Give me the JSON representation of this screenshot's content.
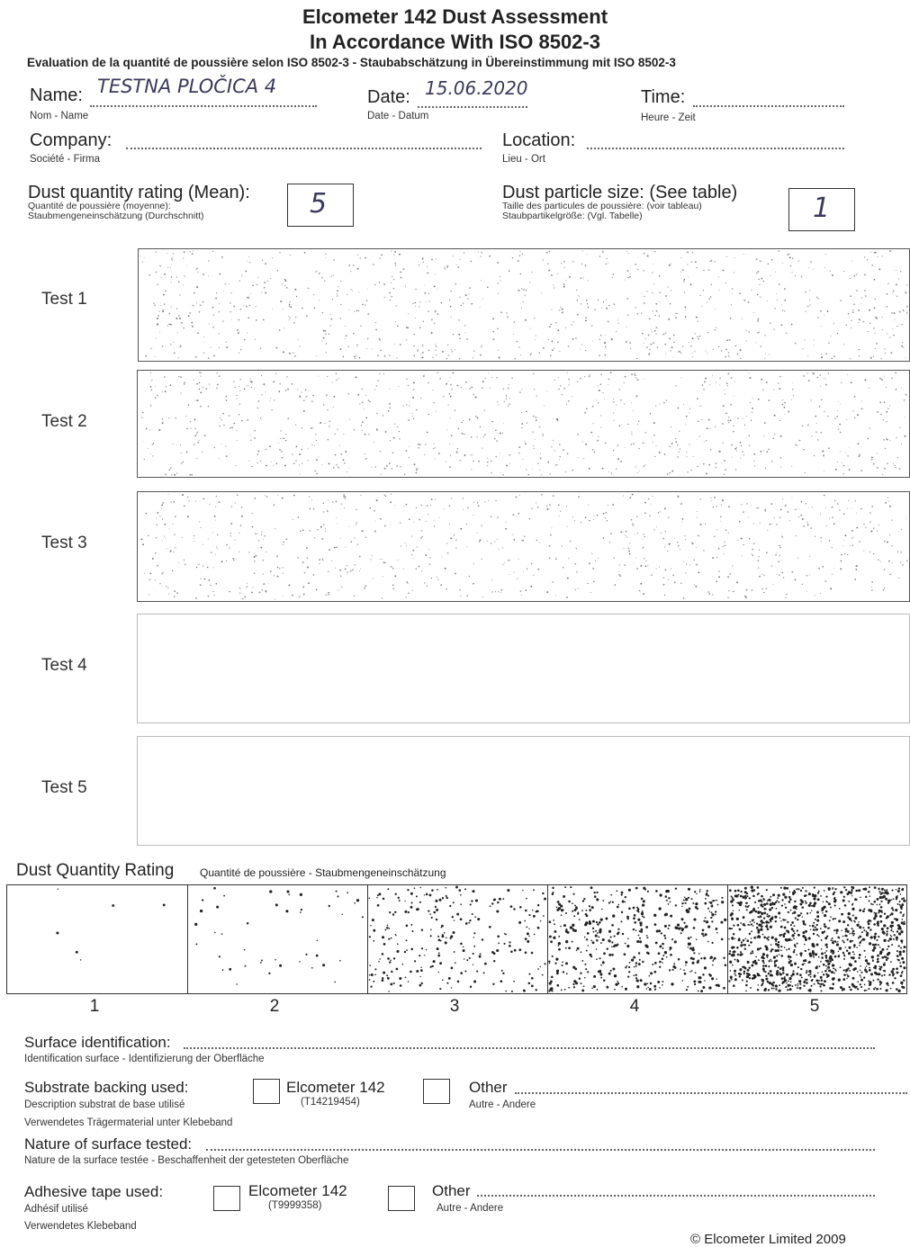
{
  "header": {
    "title_line1": "Elcometer 142 Dust Assessment",
    "title_line2": "In Accordance With ISO 8502-3",
    "subtitle": "Evaluation de la quantité de poussière selon  ISO 8502-3 - Staubabschätzung in Übereinstimmung mit ISO 8502-3"
  },
  "fields": {
    "name": {
      "label": "Name:",
      "translation": "Nom - Name",
      "value": "TESTNA PLOČICA  4"
    },
    "date": {
      "label": "Date:",
      "translation": "Date - Datum",
      "value": "15.06.2020"
    },
    "time": {
      "label": "Time:",
      "translation": "Heure - Zeit",
      "value": ""
    },
    "company": {
      "label": "Company:",
      "translation": "Société - Firma",
      "value": ""
    },
    "location": {
      "label": "Location:",
      "translation": "Lieu - Ort",
      "value": ""
    }
  },
  "ratings": {
    "quantity": {
      "label": "Dust quantity rating (Mean):",
      "translation1": "Quantité de poussière (moyenne):",
      "translation2": "Staubmengeneinschätzung (Durchschnitt)",
      "value": "5"
    },
    "size": {
      "label": "Dust particle size: (See table)",
      "translation1": "Taille des particules de poussière: (voir tableau)",
      "translation2": "Staubpartikelgröße: (Vgl. Tabelle)",
      "value": "1"
    }
  },
  "tests": [
    {
      "label": "Test 1",
      "filled": true
    },
    {
      "label": "Test 2",
      "filled": true
    },
    {
      "label": "Test 3",
      "filled": true
    },
    {
      "label": "Test 4",
      "filled": false
    },
    {
      "label": "Test 5",
      "filled": false
    }
  ],
  "scale": {
    "title": "Dust Quantity Rating",
    "subtitle": "Quantité de poussière - Staubmengeneinschätzung",
    "levels": [
      "1",
      "2",
      "3",
      "4",
      "5"
    ]
  },
  "footer": {
    "surface_id": {
      "label": "Surface identification:",
      "translation": "Identification surface - Identifizierung der Oberfläche"
    },
    "substrate": {
      "label": "Substrate backing used:",
      "translation1": "Description substrat de base utilisé",
      "translation2": "Verwendetes Trägermaterial unter Klebeband",
      "option1": "Elcometer 142",
      "option1_code": "(T14219454)",
      "option2": "Other",
      "option2_translation": "Autre - Andere"
    },
    "nature": {
      "label": "Nature of surface tested:",
      "translation": "Nature de la surface testée - Beschaffenheit der getesteten Oberfläche"
    },
    "adhesive": {
      "label": "Adhesive tape used:",
      "translation1": "Adhésif utilisé",
      "translation2": "Verwendetes Klebeband",
      "option1": "Elcometer 142",
      "option1_code": "(T9999358)",
      "option2": "Other",
      "option2_translation": "Autre - Andere"
    },
    "copyright": "© Elcometer Limited 2009"
  }
}
